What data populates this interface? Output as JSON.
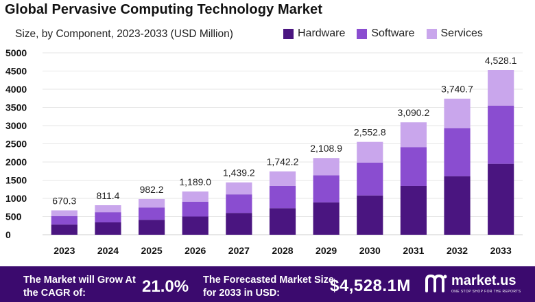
{
  "chart_data": {
    "type": "bar",
    "stacked": true,
    "title": "Global Pervasive Computing Technology Market",
    "subtitle": "Size, by Component, 2023-2033 (USD Million)",
    "categories": [
      "2023",
      "2024",
      "2025",
      "2026",
      "2027",
      "2028",
      "2029",
      "2030",
      "2031",
      "2032",
      "2033"
    ],
    "series": [
      {
        "name": "Hardware",
        "color": "#4a1580",
        "values": [
          280,
          340,
          410,
          500,
          600,
          730,
          890,
          1080,
          1340,
          1610,
          1950
        ]
      },
      {
        "name": "Software",
        "color": "#8a4dd0",
        "values": [
          230,
          280,
          340,
          410,
          510,
          610,
          745,
          905,
          1070,
          1320,
          1600
        ]
      },
      {
        "name": "Services",
        "color": "#c9a6ec",
        "values": [
          160.3,
          191.4,
          232.2,
          279.0,
          329.2,
          402.2,
          473.9,
          567.8,
          680.2,
          810.7,
          978.1
        ]
      }
    ],
    "totals": [
      670.3,
      811.4,
      982.2,
      1189.0,
      1439.2,
      1742.2,
      2108.9,
      2552.8,
      3090.2,
      3740.7,
      4528.1
    ],
    "total_labels": [
      "670.3",
      "811.4",
      "982.2",
      "1,189.0",
      "1,439.2",
      "1,742.2",
      "2,108.9",
      "2,552.8",
      "3,090.2",
      "3,740.7",
      "4,528.1"
    ],
    "yticks": [
      0,
      500,
      1000,
      1500,
      2000,
      2500,
      3000,
      3500,
      4000,
      4500,
      5000
    ],
    "ylim": [
      0,
      5000
    ],
    "grid": true,
    "legend_position": "top-right",
    "xlabel": "",
    "ylabel": ""
  },
  "footer": {
    "grow_text": "The Market will Grow At the CAGR of:",
    "cagr": "21.0%",
    "forecast_text": "The Forecasted Market Size for 2033 in USD:",
    "forecast_value": "$4,528.1M",
    "brand_name": "market.us",
    "brand_tagline": "ONE STOP SHOP FOR THE REPORTS",
    "color": "#3b0a6e"
  }
}
